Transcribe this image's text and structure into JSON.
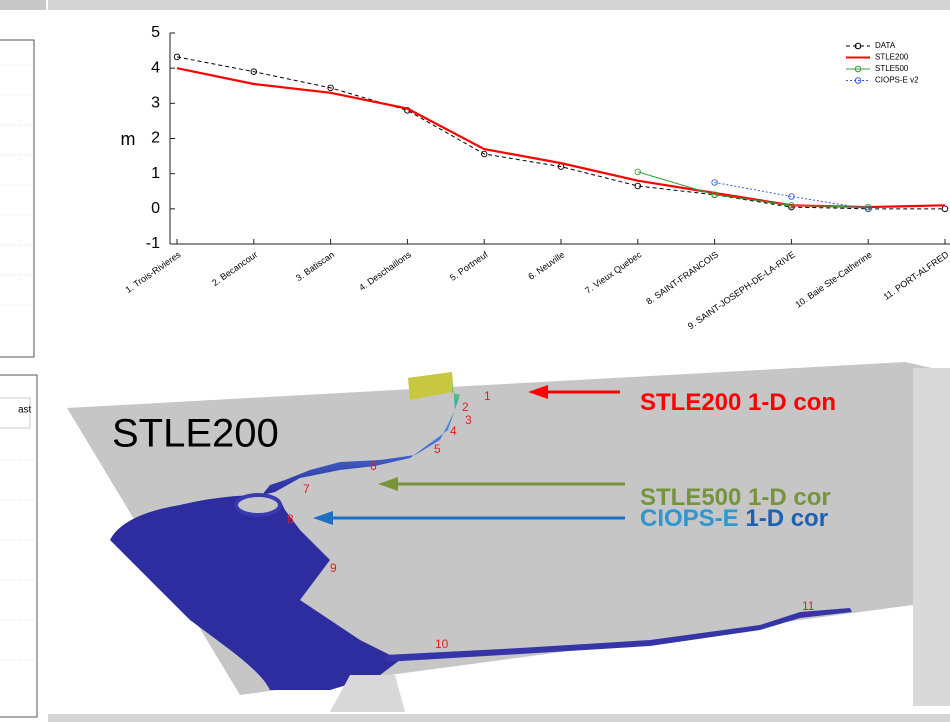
{
  "chart_data": {
    "type": "line",
    "ylabel": "m",
    "categories": [
      "1. Trois-Rivieres",
      "2. Becancour",
      "3. Batiscan",
      "4. Deschaillons",
      "5. Portneuf",
      "6. Neuville",
      "7. Vieux Quebec",
      "8. SAINT-FRANCOIS",
      "9. SAINT-JOSEPH-DE-LA-RIVE",
      "10. Baie Ste-Catherine",
      "11. PORT-ALFRED"
    ],
    "series": [
      {
        "name": "DATA",
        "color": "#000000",
        "line_style": "dashed",
        "marker": "circle",
        "values": [
          4.32,
          3.9,
          3.44,
          2.8,
          1.56,
          1.2,
          0.65,
          0.4,
          0.05,
          0,
          0
        ]
      },
      {
        "name": "STLE200",
        "color": "#ff0000",
        "line_style": "solid",
        "marker": "none",
        "values": [
          4.0,
          3.55,
          3.3,
          2.85,
          1.7,
          1.3,
          0.8,
          0.45,
          0.1,
          0.05,
          0.1
        ]
      },
      {
        "name": "STLE500",
        "color": "#3aa03a",
        "line_style": "solid",
        "marker": "circle",
        "values": [
          null,
          null,
          null,
          null,
          null,
          null,
          1.05,
          0.4,
          0.1,
          0.05,
          null
        ]
      },
      {
        "name": "CIOPS-E v2",
        "color": "#3a5bd9",
        "line_style": "dotted",
        "marker": "circle",
        "values": [
          null,
          null,
          null,
          null,
          null,
          null,
          null,
          0.75,
          0.35,
          0,
          null
        ]
      }
    ],
    "ylim": [
      -1,
      5
    ],
    "yticks": [
      -1,
      0,
      1,
      2,
      3,
      4,
      5
    ],
    "legend": "upper right"
  },
  "map_panel": {
    "title": "STLE200",
    "station_labels": [
      "1",
      "2",
      "3",
      "4",
      "5",
      "6",
      "7",
      "8",
      "9",
      "10",
      "11"
    ],
    "annotations": [
      {
        "parts": [
          {
            "text": "STLE200 1-D con",
            "color": "#ff0000"
          }
        ]
      },
      {
        "parts": [
          {
            "text": "STLE500 1-D cor",
            "color": "#77933c"
          }
        ]
      },
      {
        "parts": [
          {
            "text": "CIOPS-E ",
            "color": "#2e97d0"
          },
          {
            "text": "1-D cor",
            "color": "#1f5fb4"
          }
        ]
      }
    ]
  },
  "side_panel": {
    "text": "ast"
  }
}
